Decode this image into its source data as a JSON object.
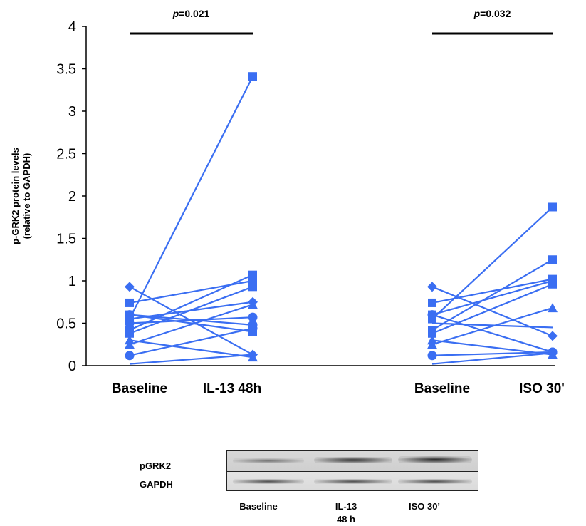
{
  "chart_data": {
    "type": "scatter",
    "ylabel_lines": [
      "p-GRK2 protein levels",
      "(relative to GAPDH)"
    ],
    "ylim": [
      0,
      4
    ],
    "yticks": [
      "0",
      "0.5",
      "1",
      "1.5",
      "2",
      "2.5",
      "3",
      "3.5",
      "4"
    ],
    "ytick_values": [
      0,
      0.5,
      1,
      1.5,
      2,
      2.5,
      3,
      3.5,
      4
    ],
    "color": "#3a6ef2",
    "groups": [
      {
        "categories": [
          "Baseline",
          "IL-13 48h"
        ],
        "p_prefix": "p",
        "p_value": "=0.021",
        "pairs": [
          {
            "marker": "square",
            "values": [
              0.55,
              3.41
            ]
          },
          {
            "marker": "square",
            "values": [
              0.42,
              1.07
            ]
          },
          {
            "marker": "square",
            "values": [
              0.74,
              1.0
            ]
          },
          {
            "marker": "square",
            "values": [
              0.38,
              0.93
            ]
          },
          {
            "marker": "square",
            "values": [
              0.6,
              0.4
            ]
          },
          {
            "marker": "diamond",
            "values": [
              0.93,
              0.13
            ]
          },
          {
            "marker": "diamond",
            "values": [
              0.55,
              0.75
            ]
          },
          {
            "marker": "triangle",
            "values": [
              0.25,
              0.72
            ]
          },
          {
            "marker": "triangle",
            "values": [
              0.3,
              0.1
            ]
          },
          {
            "marker": "circle",
            "values": [
              0.6,
              0.48
            ]
          },
          {
            "marker": "circle",
            "values": [
              0.12,
              0.44
            ]
          },
          {
            "marker": "circle",
            "values": [
              0.5,
              0.57
            ]
          },
          {
            "marker": "none",
            "values": [
              0.02,
              0.13
            ]
          }
        ]
      },
      {
        "categories": [
          "Baseline",
          "ISO 30'"
        ],
        "p_prefix": "p",
        "p_value": "=0.032",
        "pairs": [
          {
            "marker": "square",
            "values": [
              0.55,
              1.87
            ]
          },
          {
            "marker": "square",
            "values": [
              0.42,
              1.25
            ]
          },
          {
            "marker": "square",
            "values": [
              0.74,
              1.02
            ]
          },
          {
            "marker": "square",
            "values": [
              0.38,
              0.96
            ]
          },
          {
            "marker": "square",
            "values": [
              0.6,
              1.0
            ]
          },
          {
            "marker": "diamond",
            "values": [
              0.93,
              0.35
            ]
          },
          {
            "marker": "triangle",
            "values": [
              0.25,
              0.68
            ]
          },
          {
            "marker": "triangle",
            "values": [
              0.3,
              0.13
            ]
          },
          {
            "marker": "circle",
            "values": [
              0.6,
              0.16
            ]
          },
          {
            "marker": "circle",
            "values": [
              0.12,
              0.16
            ]
          },
          {
            "marker": "none",
            "values": [
              0.5,
              0.45
            ]
          },
          {
            "marker": "none",
            "values": [
              0.02,
              0.15
            ]
          }
        ]
      }
    ]
  },
  "blot": {
    "rows": [
      "pGRK2",
      "GAPDH"
    ],
    "lanes": [
      "Baseline",
      "IL-13\n48 h",
      "ISO 30’"
    ]
  }
}
